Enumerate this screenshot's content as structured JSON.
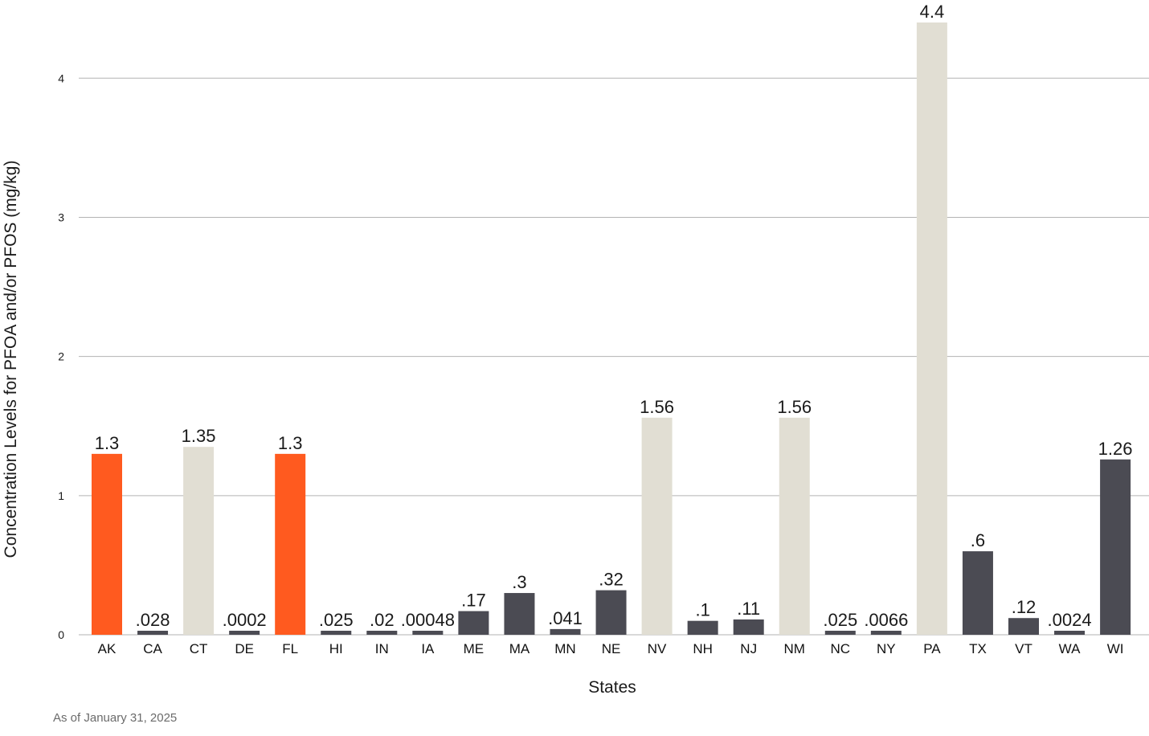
{
  "chart_data": {
    "type": "bar",
    "categories": [
      "AK",
      "CA",
      "CT",
      "DE",
      "FL",
      "HI",
      "IN",
      "IA",
      "ME",
      "MA",
      "MN",
      "NE",
      "NV",
      "NH",
      "NJ",
      "NM",
      "NC",
      "NY",
      "PA",
      "TX",
      "VT",
      "WA",
      "WI"
    ],
    "values": [
      1.3,
      0.028,
      1.35,
      0.0002,
      1.3,
      0.025,
      0.02,
      0.00048,
      0.17,
      0.3,
      0.041,
      0.32,
      1.56,
      0.1,
      0.11,
      1.56,
      0.025,
      0.0066,
      4.4,
      0.6,
      0.12,
      0.0024,
      1.26
    ],
    "labels": [
      "1.3",
      ".028",
      "1.35",
      ".0002",
      "1.3",
      ".025",
      ".02",
      ".00048",
      ".17",
      ".3",
      ".041",
      ".32",
      "1.56",
      ".1",
      ".11",
      "1.56",
      ".025",
      ".0066",
      "4.4",
      ".6",
      ".12",
      ".0024",
      "1.26"
    ],
    "bar_colors": [
      "#ff5a1f",
      "#4b4b53",
      "#e1ded3",
      "#4b4b53",
      "#ff5a1f",
      "#4b4b53",
      "#4b4b53",
      "#4b4b53",
      "#4b4b53",
      "#4b4b53",
      "#4b4b53",
      "#4b4b53",
      "#e1ded3",
      "#4b4b53",
      "#4b4b53",
      "#e1ded3",
      "#4b4b53",
      "#4b4b53",
      "#e1ded3",
      "#4b4b53",
      "#4b4b53",
      "#4b4b53",
      "#4b4b53"
    ],
    "xlabel": "States",
    "ylabel": "Concentration Levels for PFOA and/or PFOS (mg/kg)",
    "ylim": [
      0,
      4.4
    ],
    "yticks": [
      0,
      1,
      2,
      3,
      4
    ],
    "grid": true,
    "gridline_color": "#b3b3b3"
  },
  "footnote": "As of January 31, 2025"
}
